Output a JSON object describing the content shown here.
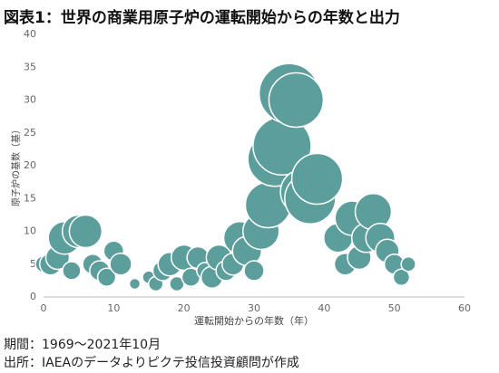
{
  "chart_data": {
    "type": "bubble",
    "title": "図表1：世界の商業用原子炉の運転開始からの年数と出力",
    "x_label": "運転開始からの年数（年）",
    "y_label": "原子炉の基数（基）",
    "color": "#5b9e9c",
    "x": [
      0,
      1,
      2,
      3,
      4,
      5,
      6,
      7,
      8,
      9,
      10,
      11,
      13,
      15,
      16,
      17,
      18,
      19,
      20,
      21,
      22,
      23,
      24,
      25,
      26,
      27,
      28,
      29,
      30,
      31,
      32,
      33,
      34,
      35,
      36,
      37,
      38,
      39,
      42,
      43,
      44,
      45,
      46,
      47,
      48,
      49,
      50,
      51,
      52
    ],
    "values": [
      5,
      5,
      6,
      9,
      4,
      10,
      10,
      5,
      4,
      3,
      7,
      5,
      2,
      3,
      2,
      4,
      5,
      2,
      6,
      3,
      6,
      4,
      3,
      6,
      4,
      5,
      9,
      7,
      4,
      10,
      14,
      21,
      23,
      31,
      30,
      16,
      15,
      18,
      9,
      5,
      12,
      6,
      9,
      13,
      9,
      7,
      5,
      3,
      5
    ],
    "sizes": [
      9,
      12,
      13,
      18,
      10,
      18,
      18,
      11,
      11,
      10,
      11,
      12,
      6,
      7,
      8,
      11,
      13,
      8,
      14,
      10,
      12,
      9,
      12,
      14,
      11,
      12,
      18,
      16,
      11,
      20,
      25,
      30,
      32,
      33,
      30,
      25,
      28,
      28,
      16,
      12,
      19,
      13,
      16,
      20,
      16,
      13,
      11,
      9,
      8
    ],
    "xlim": [
      0,
      60
    ],
    "xticks": [
      0,
      10,
      20,
      30,
      40,
      50,
      60
    ],
    "ylim": [
      0,
      40
    ],
    "yticks": [
      0,
      5,
      10,
      15,
      20,
      25,
      30,
      35,
      40
    ],
    "notes": [
      "期間：1969～2021年10月",
      "出所：IAEAのデータよりピクテ投信投資顧問が作成"
    ]
  }
}
